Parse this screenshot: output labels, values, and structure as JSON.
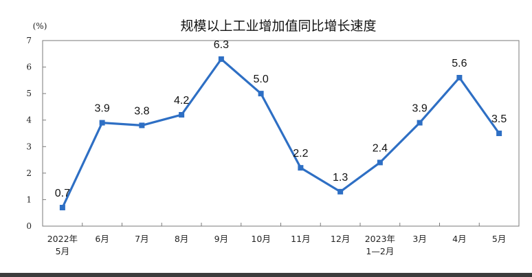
{
  "chart_data": {
    "type": "line",
    "title": "规模以上工业增加值同比增长速度",
    "unit_label": "(%)",
    "ylim": [
      0,
      7
    ],
    "yticks": [
      0,
      1,
      2,
      3,
      4,
      5,
      6,
      7
    ],
    "grid": false,
    "legend": "none",
    "categories": [
      [
        "2022年",
        "5月"
      ],
      [
        "6月"
      ],
      [
        "7月"
      ],
      [
        "8月"
      ],
      [
        "9月"
      ],
      [
        "10月"
      ],
      [
        "11月"
      ],
      [
        "12月"
      ],
      [
        "2023年",
        "1—2月"
      ],
      [
        "3月"
      ],
      [
        "4月"
      ],
      [
        "5月"
      ]
    ],
    "series": [
      {
        "values": [
          0.7,
          3.9,
          3.8,
          4.2,
          6.3,
          5.0,
          2.2,
          1.3,
          2.4,
          3.9,
          5.6,
          3.5
        ],
        "labels": [
          "0.7",
          "3.9",
          "3.8",
          "4.2",
          "6.3",
          "5.0",
          "2.2",
          "1.3",
          "2.4",
          "3.9",
          "5.6",
          "3.5"
        ],
        "color": "#2e6fc4"
      }
    ]
  }
}
